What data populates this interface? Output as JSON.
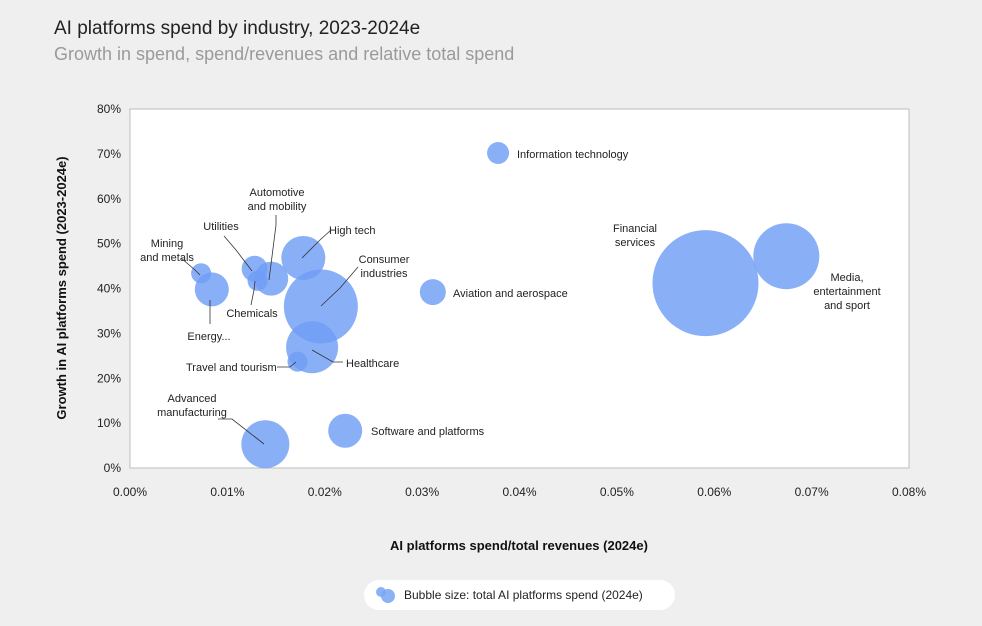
{
  "header": {
    "title": "AI platforms spend by industry, 2023-2024e",
    "subtitle": "Growth in spend, spend/revenues and relative total spend"
  },
  "legend": {
    "text": "Bubble size: total AI platforms spend (2024e)"
  },
  "colors": {
    "bubble": "#6f9ef5",
    "frame": "#bdbdbd",
    "leader": "#333333"
  },
  "chart_data": {
    "type": "scatter",
    "title": "AI platforms spend by industry, 2023-2024e",
    "subtitle": "Growth in spend, spend/revenues and relative total spend",
    "xlabel": "AI platforms spend/total revenues (2024e)",
    "ylabel": "Growth in AI platforms spend (2023-2024e)",
    "xlim": [
      0,
      0.08
    ],
    "ylim": [
      0,
      80
    ],
    "xticks": [
      0,
      0.01,
      0.02,
      0.03,
      0.04,
      0.05,
      0.06,
      0.07,
      0.08
    ],
    "yticks": [
      0,
      10,
      20,
      30,
      40,
      50,
      60,
      70,
      80
    ],
    "xtick_labels": [
      "0.00%",
      "0.01%",
      "0.02%",
      "0.03%",
      "0.04%",
      "0.05%",
      "0.06%",
      "0.07%",
      "0.08%"
    ],
    "ytick_labels": [
      "0%",
      "10%",
      "20%",
      "30%",
      "40%",
      "50%",
      "60%",
      "70%",
      "80%"
    ],
    "grid": false,
    "size_label": "Bubble size: total AI platforms spend (2024e)",
    "points": [
      {
        "label": "Information technology",
        "x": 0.0378,
        "y": 70.2,
        "size": 11,
        "label_lines": [
          "Information technology"
        ]
      },
      {
        "label": "Financial services",
        "x": 0.0591,
        "y": 41.2,
        "size": 53,
        "label_lines": [
          "Financial",
          "services"
        ]
      },
      {
        "label": "Media, entertainment and sport",
        "x": 0.0674,
        "y": 47.2,
        "size": 33,
        "label_lines": [
          "Media,",
          "entertainment",
          "and sport"
        ]
      },
      {
        "label": "Aviation and aerospace",
        "x": 0.0311,
        "y": 39.2,
        "size": 13,
        "label_lines": [
          "Aviation and aerospace"
        ]
      },
      {
        "label": "High tech",
        "x": 0.0178,
        "y": 46.8,
        "size": 22,
        "label_lines": [
          "High tech"
        ]
      },
      {
        "label": "Consumer industries",
        "x": 0.0196,
        "y": 36.0,
        "size": 37,
        "label_lines": [
          "Consumer",
          "industries"
        ]
      },
      {
        "label": "Healthcare",
        "x": 0.0187,
        "y": 26.9,
        "size": 26,
        "label_lines": [
          "Healthcare"
        ]
      },
      {
        "label": "Travel and tourism",
        "x": 0.0172,
        "y": 23.7,
        "size": 10,
        "label_lines": [
          "Travel and tourism"
        ]
      },
      {
        "label": "Automotive and mobility",
        "x": 0.0145,
        "y": 42.2,
        "size": 17,
        "label_lines": [
          "Automotive",
          "and mobility"
        ]
      },
      {
        "label": "Utilities",
        "x": 0.0128,
        "y": 44.4,
        "size": 13,
        "label_lines": [
          "Utilities"
        ]
      },
      {
        "label": "Chemicals",
        "x": 0.0131,
        "y": 41.7,
        "size": 10,
        "label_lines": [
          "Chemicals"
        ]
      },
      {
        "label": "Mining and metals",
        "x": 0.0073,
        "y": 43.4,
        "size": 10,
        "label_lines": [
          "Mining",
          "and metals"
        ]
      },
      {
        "label": "Energy...",
        "x": 0.0084,
        "y": 39.8,
        "size": 17,
        "label_lines": [
          "Energy..."
        ]
      },
      {
        "label": "Advanced manufacturing",
        "x": 0.0139,
        "y": 5.3,
        "size": 24,
        "label_lines": [
          "Advanced",
          "manufacturing"
        ]
      },
      {
        "label": "Software and platforms",
        "x": 0.0221,
        "y": 8.3,
        "size": 17,
        "label_lines": [
          "Software and platforms"
        ]
      }
    ]
  }
}
